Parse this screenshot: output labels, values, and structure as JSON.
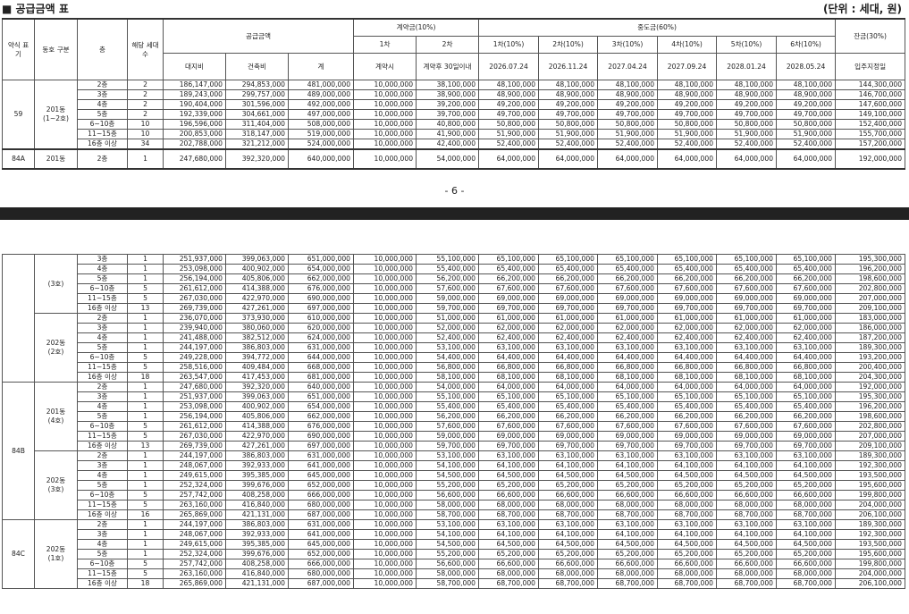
{
  "title": "■ 공급금액 표",
  "unit": "(단위 : 세대, 원)",
  "page_number": "- 6 -",
  "headers": {
    "type": "약식 표기",
    "dong": "동호 구분",
    "floor": "층",
    "units": "해당 세대수",
    "supply": "공급금액",
    "land": "대지비",
    "building": "건축비",
    "total": "계",
    "contract": "계약금(10%)",
    "c1": "1차",
    "c2": "2차",
    "c1_when": "계약시",
    "c2_when": "계약후 30일이내",
    "mid": "중도금(60%)",
    "mid_labels": [
      "1차(10%)",
      "2차(10%)",
      "3차(10%)",
      "4차(10%)",
      "5차(10%)",
      "6차(10%)"
    ],
    "mid_dates": [
      "2026.07.24",
      "2026.11.24",
      "2027.04.24",
      "2027.09.24",
      "2028.01.24",
      "2028.05.24"
    ],
    "balance": "잔금(30%)",
    "balance_when": "입주지정일"
  },
  "table1": [
    {
      "type": "59",
      "groups": [
        {
          "dong": "201동 (1~2호)",
          "rows": [
            [
              "2층",
              "2",
              "186,147,000",
              "294,853,000",
              "481,000,000",
              "10,000,000",
              "38,100,000",
              "48,100,000",
              "144,300,000"
            ],
            [
              "3층",
              "2",
              "189,243,000",
              "299,757,000",
              "489,000,000",
              "10,000,000",
              "38,900,000",
              "48,900,000",
              "146,700,000"
            ],
            [
              "4층",
              "2",
              "190,404,000",
              "301,596,000",
              "492,000,000",
              "10,000,000",
              "39,200,000",
              "49,200,000",
              "147,600,000"
            ],
            [
              "5층",
              "2",
              "192,339,000",
              "304,661,000",
              "497,000,000",
              "10,000,000",
              "39,700,000",
              "49,700,000",
              "149,100,000"
            ],
            [
              "6~10층",
              "10",
              "196,596,000",
              "311,404,000",
              "508,000,000",
              "10,000,000",
              "40,800,000",
              "50,800,000",
              "152,400,000"
            ],
            [
              "11~15층",
              "10",
              "200,853,000",
              "318,147,000",
              "519,000,000",
              "10,000,000",
              "41,900,000",
              "51,900,000",
              "155,700,000"
            ],
            [
              "16층 이상",
              "34",
              "202,788,000",
              "321,212,000",
              "524,000,000",
              "10,000,000",
              "42,400,000",
              "52,400,000",
              "157,200,000"
            ]
          ]
        }
      ]
    },
    {
      "type": "84A",
      "groups": [
        {
          "dong": "201동",
          "rows": [
            [
              "2층",
              "1",
              "247,680,000",
              "392,320,000",
              "640,000,000",
              "10,000,000",
              "54,000,000",
              "64,000,000",
              "192,000,000"
            ]
          ]
        }
      ]
    }
  ],
  "table2": [
    {
      "type": "",
      "groups": [
        {
          "dong": "(3호)",
          "rows": [
            [
              "3층",
              "1",
              "251,937,000",
              "399,063,000",
              "651,000,000",
              "10,000,000",
              "55,100,000",
              "65,100,000",
              "195,300,000"
            ],
            [
              "4층",
              "1",
              "253,098,000",
              "400,902,000",
              "654,000,000",
              "10,000,000",
              "55,400,000",
              "65,400,000",
              "196,200,000"
            ],
            [
              "5층",
              "1",
              "256,194,000",
              "405,806,000",
              "662,000,000",
              "10,000,000",
              "56,200,000",
              "66,200,000",
              "198,600,000"
            ],
            [
              "6~10층",
              "5",
              "261,612,000",
              "414,388,000",
              "676,000,000",
              "10,000,000",
              "57,600,000",
              "67,600,000",
              "202,800,000"
            ],
            [
              "11~15층",
              "5",
              "267,030,000",
              "422,970,000",
              "690,000,000",
              "10,000,000",
              "59,000,000",
              "69,000,000",
              "207,000,000"
            ],
            [
              "16층 이상",
              "13",
              "269,739,000",
              "427,261,000",
              "697,000,000",
              "10,000,000",
              "59,700,000",
              "69,700,000",
              "209,100,000"
            ]
          ]
        },
        {
          "dong": "202동 (2호)",
          "rows": [
            [
              "2층",
              "1",
              "236,070,000",
              "373,930,000",
              "610,000,000",
              "10,000,000",
              "51,000,000",
              "61,000,000",
              "183,000,000"
            ],
            [
              "3층",
              "1",
              "239,940,000",
              "380,060,000",
              "620,000,000",
              "10,000,000",
              "52,000,000",
              "62,000,000",
              "186,000,000"
            ],
            [
              "4층",
              "1",
              "241,488,000",
              "382,512,000",
              "624,000,000",
              "10,000,000",
              "52,400,000",
              "62,400,000",
              "187,200,000"
            ],
            [
              "5층",
              "1",
              "244,197,000",
              "386,803,000",
              "631,000,000",
              "10,000,000",
              "53,100,000",
              "63,100,000",
              "189,300,000"
            ],
            [
              "6~10층",
              "5",
              "249,228,000",
              "394,772,000",
              "644,000,000",
              "10,000,000",
              "54,400,000",
              "64,400,000",
              "193,200,000"
            ],
            [
              "11~15층",
              "5",
              "258,516,000",
              "409,484,000",
              "668,000,000",
              "10,000,000",
              "56,800,000",
              "66,800,000",
              "200,400,000"
            ],
            [
              "16층 이상",
              "18",
              "263,547,000",
              "417,453,000",
              "681,000,000",
              "10,000,000",
              "58,100,000",
              "68,100,000",
              "204,300,000"
            ]
          ]
        }
      ]
    },
    {
      "type": "84B",
      "groups": [
        {
          "dong": "201동 (4호)",
          "rows": [
            [
              "2층",
              "1",
              "247,680,000",
              "392,320,000",
              "640,000,000",
              "10,000,000",
              "54,000,000",
              "64,000,000",
              "192,000,000"
            ],
            [
              "3층",
              "1",
              "251,937,000",
              "399,063,000",
              "651,000,000",
              "10,000,000",
              "55,100,000",
              "65,100,000",
              "195,300,000"
            ],
            [
              "4층",
              "1",
              "253,098,000",
              "400,902,000",
              "654,000,000",
              "10,000,000",
              "55,400,000",
              "65,400,000",
              "196,200,000"
            ],
            [
              "5층",
              "1",
              "256,194,000",
              "405,806,000",
              "662,000,000",
              "10,000,000",
              "56,200,000",
              "66,200,000",
              "198,600,000"
            ],
            [
              "6~10층",
              "5",
              "261,612,000",
              "414,388,000",
              "676,000,000",
              "10,000,000",
              "57,600,000",
              "67,600,000",
              "202,800,000"
            ],
            [
              "11~15층",
              "5",
              "267,030,000",
              "422,970,000",
              "690,000,000",
              "10,000,000",
              "59,000,000",
              "69,000,000",
              "207,000,000"
            ],
            [
              "16층 이상",
              "13",
              "269,739,000",
              "427,261,000",
              "697,000,000",
              "10,000,000",
              "59,700,000",
              "69,700,000",
              "209,100,000"
            ]
          ]
        },
        {
          "dong": "202동 (3호)",
          "rows": [
            [
              "2층",
              "1",
              "244,197,000",
              "386,803,000",
              "631,000,000",
              "10,000,000",
              "53,100,000",
              "63,100,000",
              "189,300,000"
            ],
            [
              "3층",
              "1",
              "248,067,000",
              "392,933,000",
              "641,000,000",
              "10,000,000",
              "54,100,000",
              "64,100,000",
              "192,300,000"
            ],
            [
              "4층",
              "1",
              "249,615,000",
              "395,385,000",
              "645,000,000",
              "10,000,000",
              "54,500,000",
              "64,500,000",
              "193,500,000"
            ],
            [
              "5층",
              "1",
              "252,324,000",
              "399,676,000",
              "652,000,000",
              "10,000,000",
              "55,200,000",
              "65,200,000",
              "195,600,000"
            ],
            [
              "6~10층",
              "5",
              "257,742,000",
              "408,258,000",
              "666,000,000",
              "10,000,000",
              "56,600,000",
              "66,600,000",
              "199,800,000"
            ],
            [
              "11~15층",
              "5",
              "263,160,000",
              "416,840,000",
              "680,000,000",
              "10,000,000",
              "58,000,000",
              "68,000,000",
              "204,000,000"
            ],
            [
              "16층 이상",
              "16",
              "265,869,000",
              "421,131,000",
              "687,000,000",
              "10,000,000",
              "58,700,000",
              "68,700,000",
              "206,100,000"
            ]
          ]
        }
      ]
    },
    {
      "type": "84C",
      "groups": [
        {
          "dong": "202동 (1호)",
          "rows": [
            [
              "2층",
              "1",
              "244,197,000",
              "386,803,000",
              "631,000,000",
              "10,000,000",
              "53,100,000",
              "63,100,000",
              "189,300,000"
            ],
            [
              "3층",
              "1",
              "248,067,000",
              "392,933,000",
              "641,000,000",
              "10,000,000",
              "54,100,000",
              "64,100,000",
              "192,300,000"
            ],
            [
              "4층",
              "1",
              "249,615,000",
              "395,385,000",
              "645,000,000",
              "10,000,000",
              "54,500,000",
              "64,500,000",
              "193,500,000"
            ],
            [
              "5층",
              "1",
              "252,324,000",
              "399,676,000",
              "652,000,000",
              "10,000,000",
              "55,200,000",
              "65,200,000",
              "195,600,000"
            ],
            [
              "6~10층",
              "5",
              "257,742,000",
              "408,258,000",
              "666,000,000",
              "10,000,000",
              "56,600,000",
              "66,600,000",
              "199,800,000"
            ],
            [
              "11~15층",
              "5",
              "263,160,000",
              "416,840,000",
              "680,000,000",
              "10,000,000",
              "58,000,000",
              "68,000,000",
              "204,000,000"
            ],
            [
              "16층 이상",
              "18",
              "265,869,000",
              "421,131,000",
              "687,000,000",
              "10,000,000",
              "58,700,000",
              "68,700,000",
              "206,100,000"
            ]
          ]
        }
      ]
    }
  ]
}
